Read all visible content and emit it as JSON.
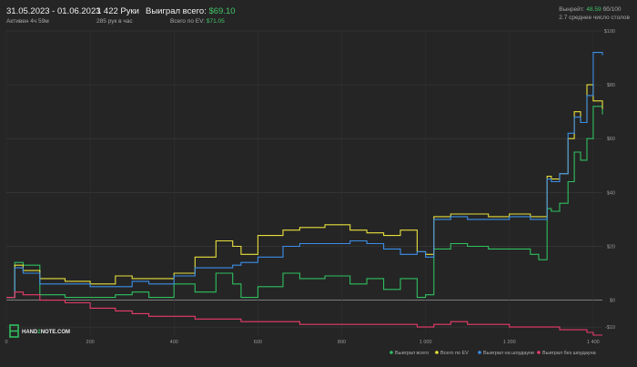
{
  "header": {
    "date_range": "31.05.2023 - 01.06.2023",
    "active": "Активен 4ч 59м",
    "hands": "1 422 Руки",
    "hands_per_hour": "285 рук в час",
    "won_total_label": "Выиграл всего:",
    "won_total_value": "$69.10",
    "ev_label": "Всего по EV:",
    "ev_value": "$71.05",
    "vpip_label": "Вынрейт:",
    "vpip_value": "48.59",
    "vpip_suffix": "бб/100",
    "avg_tables": "2.7 среднее число столов"
  },
  "logo": {
    "part1": "HAND",
    "part2": "2",
    "part3": "NOTE.COM"
  },
  "colors": {
    "won": "#2fbf5f",
    "ev": "#e8e03c",
    "showdown": "#3c8ee8",
    "nonshowdown": "#e83c6a",
    "background": "#252525"
  },
  "chart_data": {
    "type": "line",
    "xlabel": "",
    "ylabel": "",
    "xlim": [
      0,
      1422
    ],
    "ylim": [
      -13,
      100
    ],
    "x_ticks": [
      0,
      200,
      400,
      600,
      800,
      1000,
      1200,
      1400
    ],
    "x_tick_labels": [
      "0",
      "200",
      "400",
      "600",
      "800",
      "1 000",
      "1 200",
      "1 400"
    ],
    "y_ticks": [
      -10,
      0,
      20,
      40,
      60,
      80,
      100
    ],
    "y_tick_labels": [
      "-$10",
      "$0",
      "$20",
      "$40",
      "$60",
      "$80",
      "$100"
    ],
    "grid": true,
    "legend": "bottom-right",
    "series": [
      {
        "name": "Выиграл всего",
        "color": "#2fbf5f",
        "x": [
          0,
          20,
          40,
          80,
          140,
          200,
          260,
          300,
          340,
          400,
          450,
          500,
          540,
          560,
          600,
          660,
          700,
          760,
          820,
          860,
          900,
          940,
          980,
          1000,
          1020,
          1060,
          1100,
          1150,
          1200,
          1250,
          1270,
          1290,
          1300,
          1320,
          1340,
          1355,
          1370,
          1385,
          1400,
          1422
        ],
        "y": [
          1,
          14,
          13,
          2,
          1,
          1,
          2,
          3,
          1,
          6,
          3,
          10,
          6,
          1,
          5,
          10,
          8,
          9,
          6,
          8,
          4,
          8,
          1,
          2,
          19,
          21,
          20,
          19,
          19,
          17,
          15,
          34,
          33,
          36,
          44,
          55,
          52,
          60,
          72,
          69
        ]
      },
      {
        "name": "Всего по EV",
        "color": "#e8e03c",
        "x": [
          0,
          20,
          40,
          80,
          140,
          200,
          260,
          300,
          340,
          400,
          450,
          500,
          540,
          560,
          600,
          660,
          700,
          760,
          820,
          860,
          900,
          940,
          980,
          1000,
          1020,
          1060,
          1100,
          1150,
          1200,
          1250,
          1270,
          1290,
          1300,
          1320,
          1340,
          1355,
          1370,
          1385,
          1400,
          1422
        ],
        "y": [
          1,
          13,
          11,
          8,
          7,
          6,
          9,
          8,
          8,
          10,
          16,
          22,
          20,
          17,
          24,
          26,
          27,
          28,
          26,
          25,
          24,
          26,
          18,
          17,
          31,
          32,
          32,
          31,
          32,
          31,
          31,
          46,
          45,
          47,
          60,
          70,
          66,
          80,
          74,
          71
        ]
      },
      {
        "name": "Выиграл на шоудауне",
        "color": "#3c8ee8",
        "x": [
          0,
          20,
          40,
          80,
          140,
          200,
          260,
          300,
          340,
          400,
          450,
          500,
          540,
          560,
          600,
          660,
          700,
          760,
          820,
          860,
          900,
          940,
          980,
          1000,
          1020,
          1060,
          1100,
          1150,
          1200,
          1250,
          1270,
          1290,
          1300,
          1320,
          1340,
          1355,
          1370,
          1385,
          1400,
          1422
        ],
        "y": [
          1,
          12,
          10,
          6,
          6,
          5,
          5,
          7,
          6,
          9,
          12,
          12,
          13,
          14,
          16,
          20,
          21,
          21,
          22,
          21,
          19,
          17,
          18,
          16,
          30,
          31,
          30,
          30,
          31,
          30,
          30,
          45,
          44,
          47,
          62,
          68,
          66,
          76,
          92,
          91
        ]
      },
      {
        "name": "Выиграл без шоудауна",
        "color": "#e83c6a",
        "x": [
          0,
          20,
          40,
          80,
          140,
          200,
          260,
          300,
          340,
          400,
          450,
          500,
          540,
          560,
          600,
          660,
          700,
          760,
          820,
          860,
          900,
          940,
          980,
          1000,
          1020,
          1060,
          1100,
          1150,
          1200,
          1250,
          1270,
          1290,
          1300,
          1320,
          1340,
          1355,
          1370,
          1385,
          1400,
          1422
        ],
        "y": [
          1,
          3,
          2,
          0,
          -1,
          -3,
          -4,
          -5,
          -6,
          -6,
          -7,
          -7,
          -7,
          -8,
          -8,
          -8,
          -9,
          -9,
          -9,
          -9,
          -9,
          -9,
          -10,
          -10,
          -9,
          -8,
          -9,
          -9,
          -10,
          -10,
          -10,
          -10,
          -10,
          -11,
          -11,
          -11,
          -11,
          -12,
          -13,
          -13
        ]
      }
    ]
  }
}
